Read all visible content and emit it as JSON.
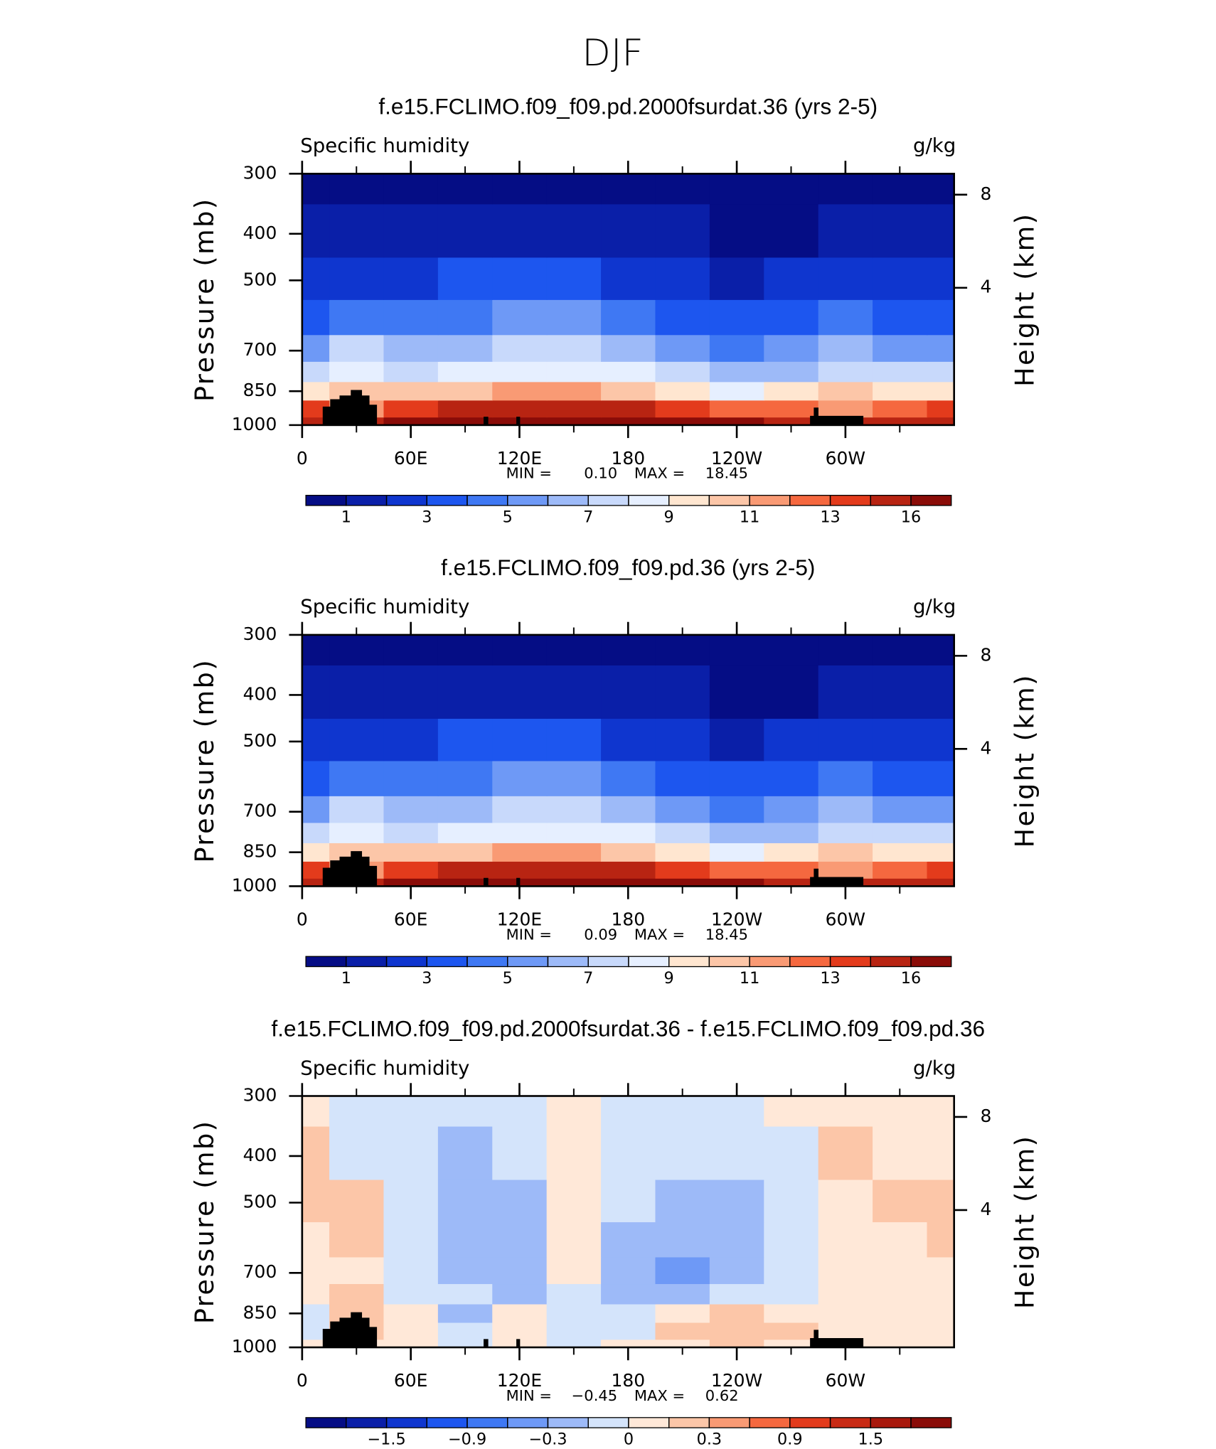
{
  "title": "DJF",
  "chart_data": [
    {
      "type": "contour",
      "title": "f.e15.FCLIMO.f09_f09.pd.2000fsurdat.36 (yrs 2-5)",
      "subtitle": "Specific humidity",
      "units": "g/kg",
      "ylabel": "Pressure (mb)",
      "y2label": "Height (km)",
      "x": [
        0,
        30,
        60,
        90,
        120,
        150,
        180,
        210,
        240,
        270,
        300,
        330,
        360
      ],
      "y": [
        1000,
        925,
        850,
        775,
        700,
        600,
        500,
        400,
        300
      ],
      "values": [
        [
          15.5,
          14.0,
          16.5,
          17.0,
          17.5,
          18.0,
          18.0,
          17.0,
          16.0,
          15.5,
          14.0,
          15.5,
          15.5
        ],
        [
          13.0,
          11.0,
          13.5,
          14.0,
          14.5,
          15.0,
          14.5,
          13.5,
          12.5,
          12.5,
          11.5,
          12.5,
          13.0
        ],
        [
          9.5,
          10.0,
          10.0,
          10.5,
          11.0,
          11.0,
          10.5,
          9.5,
          8.5,
          9.0,
          10.0,
          9.0,
          9.5
        ],
        [
          7.5,
          8.5,
          7.5,
          8.0,
          8.5,
          8.5,
          8.0,
          7.0,
          6.0,
          6.5,
          7.5,
          7.0,
          7.5
        ],
        [
          5.5,
          7.0,
          6.0,
          6.5,
          7.0,
          7.0,
          6.5,
          5.5,
          4.5,
          5.0,
          6.0,
          5.0,
          5.5
        ],
        [
          3.5,
          4.0,
          4.0,
          4.5,
          5.0,
          5.0,
          4.5,
          3.5,
          3.0,
          3.5,
          4.0,
          3.5,
          3.5
        ],
        [
          2.0,
          2.0,
          2.5,
          3.0,
          3.0,
          3.0,
          2.5,
          2.0,
          1.5,
          2.0,
          2.5,
          2.5,
          2.0
        ],
        [
          1.0,
          1.0,
          1.2,
          1.5,
          1.5,
          1.6,
          1.3,
          1.0,
          0.7,
          0.8,
          1.2,
          1.2,
          1.0
        ],
        [
          0.3,
          0.3,
          0.4,
          0.5,
          0.5,
          0.6,
          0.5,
          0.3,
          0.2,
          0.3,
          0.4,
          0.4,
          0.3
        ]
      ],
      "xlim": [
        0,
        360
      ],
      "xticks": [
        0,
        {
          "value": 60,
          "label": "60E"
        },
        {
          "value": 120,
          "label": "120E"
        },
        180,
        {
          "value": 240,
          "label": "120W"
        },
        {
          "value": 300,
          "label": "60W"
        }
      ],
      "xminor": [
        30,
        90,
        150,
        210,
        270,
        330
      ],
      "ylim": [
        1000,
        300
      ],
      "log_y": true,
      "yticks": [
        300,
        400,
        500,
        700,
        850,
        1000
      ],
      "y2lim": [
        -1.9,
        8.9
      ],
      "y2ticks": [
        4,
        8
      ],
      "min_text": "MIN =",
      "min": {
        "value": 0.1,
        "label": "0.10"
      },
      "max_text": "MAX =",
      "max": {
        "value": 18.45,
        "label": "18.45"
      },
      "levels": [
        1,
        2,
        3,
        4,
        5,
        6,
        7,
        8,
        9,
        10,
        11,
        12,
        13,
        14,
        16
      ],
      "level_labels": [
        "1",
        null,
        "3",
        null,
        "5",
        null,
        "7",
        null,
        "9",
        null,
        "11",
        null,
        "13",
        null,
        "16"
      ],
      "colors": [
        "#050d85",
        "#0a1fa8",
        "#0f36cf",
        "#1d56ef",
        "#3f78f3",
        "#6e99f6",
        "#9dbaf8",
        "#c8d9fb",
        "#e6efff",
        "#ffe6d0",
        "#fcc6a8",
        "#f99a74",
        "#f5683f",
        "#e33b1c",
        "#b82412",
        "#8a0c08"
      ]
    },
    {
      "type": "contour",
      "title": "f.e15.FCLIMO.f09_f09.pd.36 (yrs 2-5)",
      "subtitle": "Specific humidity",
      "units": "g/kg",
      "ylabel": "Pressure (mb)",
      "y2label": "Height (km)",
      "x": [
        0,
        30,
        60,
        90,
        120,
        150,
        180,
        210,
        240,
        270,
        300,
        330,
        360
      ],
      "y": [
        1000,
        925,
        850,
        775,
        700,
        600,
        500,
        400,
        300
      ],
      "values": [
        [
          15.5,
          14.0,
          16.5,
          17.0,
          17.5,
          18.2,
          18.0,
          17.0,
          16.0,
          15.5,
          14.0,
          15.5,
          15.5
        ],
        [
          13.0,
          11.0,
          13.5,
          14.0,
          14.5,
          15.0,
          14.5,
          13.5,
          12.5,
          12.5,
          11.5,
          12.5,
          13.0
        ],
        [
          9.5,
          10.0,
          10.0,
          10.5,
          11.0,
          11.0,
          10.5,
          9.5,
          8.5,
          9.0,
          10.0,
          9.0,
          9.5
        ],
        [
          7.5,
          8.5,
          7.5,
          8.0,
          8.5,
          8.5,
          8.0,
          7.0,
          6.0,
          6.5,
          7.5,
          7.0,
          7.5
        ],
        [
          5.5,
          7.0,
          6.0,
          6.5,
          7.0,
          7.0,
          6.5,
          5.5,
          4.5,
          5.0,
          6.0,
          5.0,
          5.5
        ],
        [
          3.5,
          4.0,
          4.0,
          4.5,
          5.0,
          5.0,
          4.5,
          3.5,
          3.0,
          3.5,
          4.0,
          3.5,
          3.5
        ],
        [
          2.0,
          2.0,
          2.5,
          3.0,
          3.0,
          3.0,
          2.5,
          2.0,
          1.5,
          2.0,
          2.5,
          2.5,
          2.0
        ],
        [
          1.0,
          1.0,
          1.2,
          1.5,
          1.5,
          1.6,
          1.3,
          1.0,
          0.7,
          0.8,
          1.2,
          1.2,
          1.0
        ],
        [
          0.3,
          0.3,
          0.4,
          0.5,
          0.5,
          0.6,
          0.5,
          0.3,
          0.2,
          0.3,
          0.4,
          0.4,
          0.3
        ]
      ],
      "xlim": [
        0,
        360
      ],
      "xticks": [
        0,
        {
          "value": 60,
          "label": "60E"
        },
        {
          "value": 120,
          "label": "120E"
        },
        180,
        {
          "value": 240,
          "label": "120W"
        },
        {
          "value": 300,
          "label": "60W"
        }
      ],
      "xminor": [
        30,
        90,
        150,
        210,
        270,
        330
      ],
      "ylim": [
        1000,
        300
      ],
      "log_y": true,
      "yticks": [
        300,
        400,
        500,
        700,
        850,
        1000
      ],
      "y2lim": [
        -1.9,
        8.9
      ],
      "y2ticks": [
        4,
        8
      ],
      "min_text": "MIN =",
      "min": {
        "value": 0.09,
        "label": "0.09"
      },
      "max_text": "MAX =",
      "max": {
        "value": 18.45,
        "label": "18.45"
      },
      "levels": [
        1,
        2,
        3,
        4,
        5,
        6,
        7,
        8,
        9,
        10,
        11,
        12,
        13,
        14,
        16
      ],
      "level_labels": [
        "1",
        null,
        "3",
        null,
        "5",
        null,
        "7",
        null,
        "9",
        null,
        "11",
        null,
        "13",
        null,
        "16"
      ],
      "colors": [
        "#050d85",
        "#0a1fa8",
        "#0f36cf",
        "#1d56ef",
        "#3f78f3",
        "#6e99f6",
        "#9dbaf8",
        "#c8d9fb",
        "#e6efff",
        "#ffe6d0",
        "#fcc6a8",
        "#f99a74",
        "#f5683f",
        "#e33b1c",
        "#b82412",
        "#8a0c08"
      ]
    },
    {
      "type": "contour",
      "title": "f.e15.FCLIMO.f09_f09.pd.2000fsurdat.36 - f.e15.FCLIMO.f09_f09.pd.36",
      "subtitle": "Specific humidity",
      "units": "g/kg",
      "ylabel": "Pressure (mb)",
      "y2label": "Height (km)",
      "x": [
        0,
        30,
        60,
        90,
        120,
        150,
        180,
        210,
        240,
        270,
        300,
        330,
        360
      ],
      "y": [
        1000,
        925,
        850,
        775,
        700,
        600,
        500,
        400,
        300
      ],
      "values": [
        [
          0.05,
          0.05,
          0.05,
          -0.05,
          0.05,
          -0.05,
          0.05,
          0.05,
          0.15,
          0.05,
          0.05,
          0.05,
          0.05
        ],
        [
          -0.05,
          0.15,
          0.05,
          -0.05,
          0.05,
          -0.05,
          -0.05,
          0.15,
          0.2,
          0.15,
          0.05,
          0.05,
          0.05
        ],
        [
          -0.05,
          0.15,
          0.05,
          -0.15,
          0.05,
          -0.05,
          -0.05,
          0.05,
          0.15,
          0.05,
          0.05,
          0.05,
          0.05
        ],
        [
          0.05,
          0.15,
          -0.05,
          -0.05,
          -0.15,
          -0.05,
          -0.15,
          -0.25,
          -0.05,
          -0.05,
          0.05,
          0.05,
          0.05
        ],
        [
          0.05,
          0.05,
          -0.05,
          -0.15,
          -0.15,
          0.05,
          -0.15,
          -0.35,
          -0.15,
          -0.05,
          0.05,
          0.05,
          0.05
        ],
        [
          0.05,
          0.15,
          -0.05,
          -0.15,
          -0.15,
          0.05,
          -0.15,
          -0.15,
          -0.15,
          -0.05,
          0.05,
          0.05,
          0.15
        ],
        [
          0.15,
          0.15,
          -0.05,
          -0.15,
          -0.15,
          0.05,
          -0.05,
          -0.15,
          -0.15,
          -0.05,
          0.05,
          0.15,
          0.15
        ],
        [
          0.15,
          -0.05,
          -0.05,
          -0.15,
          -0.05,
          0.05,
          -0.05,
          -0.05,
          -0.05,
          -0.05,
          0.15,
          0.05,
          0.05
        ],
        [
          0.05,
          -0.05,
          -0.05,
          -0.05,
          -0.05,
          0.05,
          -0.05,
          -0.05,
          -0.05,
          0.05,
          0.05,
          0.05,
          0.05
        ]
      ],
      "xlim": [
        0,
        360
      ],
      "xticks": [
        0,
        {
          "value": 60,
          "label": "60E"
        },
        {
          "value": 120,
          "label": "120E"
        },
        180,
        {
          "value": 240,
          "label": "120W"
        },
        {
          "value": 300,
          "label": "60W"
        }
      ],
      "xminor": [
        30,
        90,
        150,
        210,
        270,
        330
      ],
      "ylim": [
        1000,
        300
      ],
      "log_y": true,
      "yticks": [
        300,
        400,
        500,
        700,
        850,
        1000
      ],
      "y2lim": [
        -1.9,
        8.9
      ],
      "y2ticks": [
        4,
        8
      ],
      "min_text": "MIN =",
      "min": {
        "value": -0.45,
        "label": "−0.45"
      },
      "max_text": "MAX =",
      "max": {
        "value": 0.62,
        "label": "0.62"
      },
      "levels": [
        -1.8,
        -1.5,
        -1.2,
        -0.9,
        -0.6,
        -0.3,
        -0.1,
        0,
        0.1,
        0.3,
        0.6,
        0.9,
        1.2,
        1.5,
        1.8
      ],
      "level_labels": [
        null,
        "−1.5",
        null,
        "−0.9",
        null,
        "−0.3",
        null,
        "0",
        null,
        "0.3",
        null,
        "0.9",
        null,
        "1.5",
        null
      ],
      "colors": [
        "#050d85",
        "#0a1fa8",
        "#0f36cf",
        "#1d56ef",
        "#3f78f3",
        "#6e99f6",
        "#9dbaf8",
        "#d4e4fb",
        "#ffe8d8",
        "#fcc6a8",
        "#f99a74",
        "#f5683f",
        "#e33b1c",
        "#c82a14",
        "#a8180c",
        "#8a0c08"
      ]
    }
  ]
}
